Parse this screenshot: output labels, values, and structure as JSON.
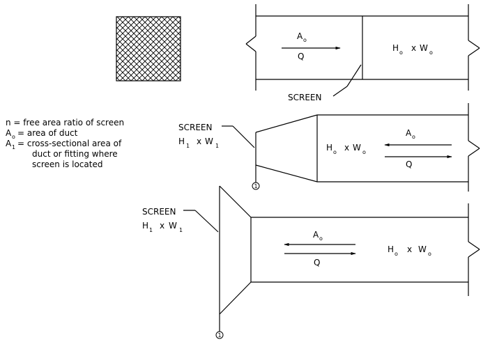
{
  "legend": {
    "lines": [
      "n = free area ratio of screen",
      "A",
      "= area of duct",
      "A",
      "= cross-sectional area of",
      "duct or fitting where",
      "screen is located"
    ],
    "sub_o": "o",
    "sub_1": "1"
  },
  "labels": {
    "screen": "SCREEN",
    "A": "A",
    "Q": "Q",
    "H": "H",
    "W": "W",
    "x": "x",
    "sub_o": "o",
    "sub_1": "1",
    "point_marker": "1"
  }
}
